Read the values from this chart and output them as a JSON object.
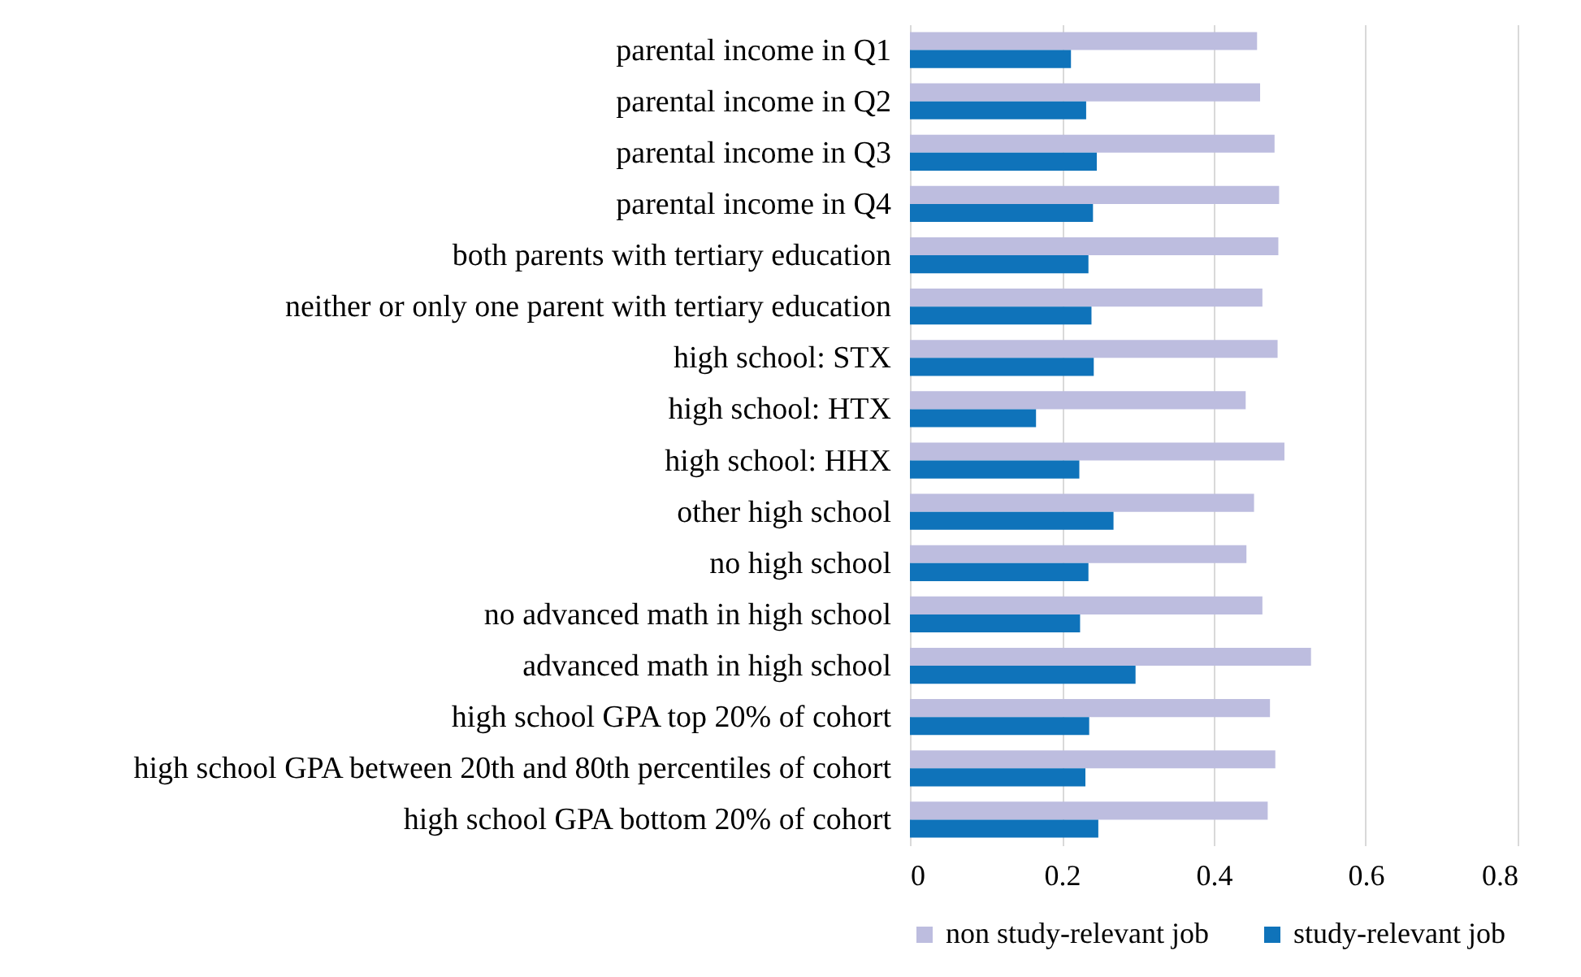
{
  "chart_data": {
    "type": "bar",
    "orientation": "horizontal",
    "categories": [
      "parental income in Q1",
      "parental income in Q2",
      "parental income in Q3",
      "parental income in Q4",
      "both parents with tertiary education",
      "neither or only one parent with tertiary education",
      "high school: STX",
      "high school: HTX",
      "high school: HHX",
      "other high school",
      "no high school",
      "no advanced math in high school",
      "advanced math in high school",
      "high school GPA top 20% of cohort",
      "high school GPA between 20th and 80th percentiles of cohort",
      "high school GPA bottom 20% of cohort"
    ],
    "series": [
      {
        "name": "non study-relevant job",
        "color": "#bdbddf",
        "values": [
          0.457,
          0.461,
          0.48,
          0.486,
          0.485,
          0.464,
          0.484,
          0.442,
          0.493,
          0.453,
          0.443,
          0.464,
          0.528,
          0.474,
          0.481,
          0.471
        ]
      },
      {
        "name": "study-relevant job",
        "color": "#0f73ba",
        "values": [
          0.212,
          0.232,
          0.246,
          0.241,
          0.235,
          0.239,
          0.242,
          0.166,
          0.223,
          0.268,
          0.235,
          0.224,
          0.297,
          0.236,
          0.231,
          0.248
        ]
      }
    ],
    "xlim": [
      0,
      0.8
    ],
    "xticks": [
      0,
      0.2,
      0.4,
      0.6,
      0.8
    ],
    "grid": "x",
    "legend": "bottom"
  }
}
